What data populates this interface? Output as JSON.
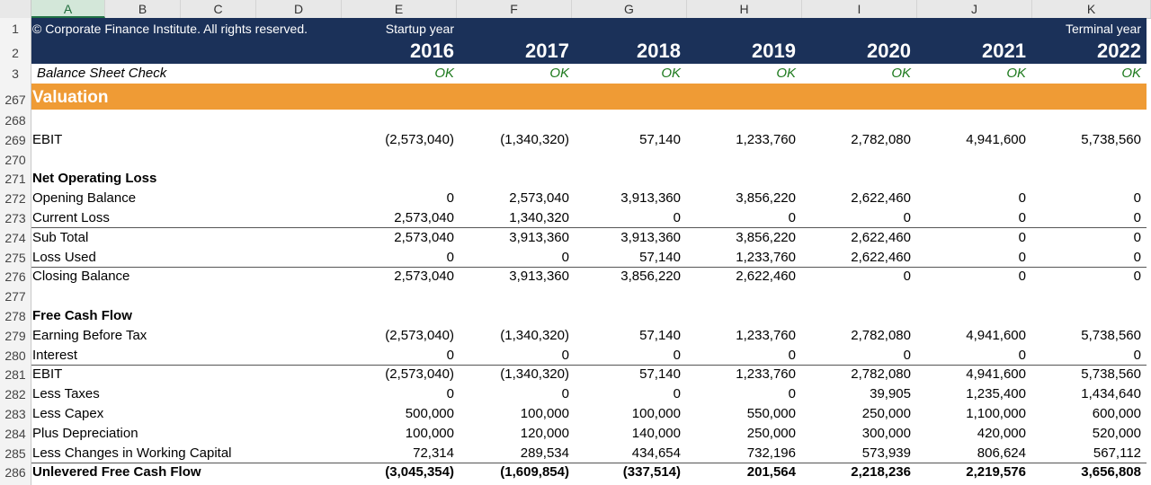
{
  "columns": [
    "A",
    "B",
    "C",
    "D",
    "E",
    "F",
    "G",
    "H",
    "I",
    "J",
    "K"
  ],
  "selected_column": "A",
  "header": {
    "copyright": "© Corporate Finance Institute. All rights reserved.",
    "startup_label": "Startup year",
    "terminal_label": "Terminal year",
    "years": [
      "2016",
      "2017",
      "2018",
      "2019",
      "2020",
      "2021",
      "2022"
    ]
  },
  "check": {
    "label": "Balance Sheet Check",
    "values": [
      "OK",
      "OK",
      "OK",
      "OK",
      "OK",
      "OK",
      "OK"
    ]
  },
  "row_numbers": {
    "r1": "1",
    "r2": "2",
    "r3": "3",
    "r267": "267"
  },
  "section_title": "Valuation",
  "rows": [
    {
      "n": "268",
      "label": "",
      "values": [
        "",
        "",
        "",
        "",
        "",
        "",
        ""
      ]
    },
    {
      "n": "269",
      "label": "EBIT",
      "values": [
        "(2,573,040)",
        "(1,340,320)",
        "57,140",
        "1,233,760",
        "2,782,080",
        "4,941,600",
        "5,738,560"
      ]
    },
    {
      "n": "270",
      "label": "",
      "values": [
        "",
        "",
        "",
        "",
        "",
        "",
        ""
      ]
    },
    {
      "n": "271",
      "label": "Net Operating Loss",
      "values": [
        "",
        "",
        "",
        "",
        "",
        "",
        ""
      ]
    },
    {
      "n": "272",
      "label": "Opening Balance",
      "values": [
        "0",
        "2,573,040",
        "3,913,360",
        "3,856,220",
        "2,622,460",
        "0",
        "0"
      ]
    },
    {
      "n": "273",
      "label": "Current Loss",
      "values": [
        "2,573,040",
        "1,340,320",
        "0",
        "0",
        "0",
        "0",
        "0"
      ]
    },
    {
      "n": "274",
      "label": "Sub Total",
      "values": [
        "2,573,040",
        "3,913,360",
        "3,913,360",
        "3,856,220",
        "2,622,460",
        "0",
        "0"
      ]
    },
    {
      "n": "275",
      "label": "Loss Used",
      "values": [
        "0",
        "0",
        "57,140",
        "1,233,760",
        "2,622,460",
        "0",
        "0"
      ]
    },
    {
      "n": "276",
      "label": "Closing Balance",
      "values": [
        "2,573,040",
        "3,913,360",
        "3,856,220",
        "2,622,460",
        "0",
        "0",
        "0"
      ]
    },
    {
      "n": "277",
      "label": "",
      "values": [
        "",
        "",
        "",
        "",
        "",
        "",
        ""
      ]
    },
    {
      "n": "278",
      "label": "Free Cash Flow",
      "values": [
        "",
        "",
        "",
        "",
        "",
        "",
        ""
      ]
    },
    {
      "n": "279",
      "label": "Earning Before Tax",
      "values": [
        "(2,573,040)",
        "(1,340,320)",
        "57,140",
        "1,233,760",
        "2,782,080",
        "4,941,600",
        "5,738,560"
      ]
    },
    {
      "n": "280",
      "label": "Interest",
      "values": [
        "0",
        "0",
        "0",
        "0",
        "0",
        "0",
        "0"
      ]
    },
    {
      "n": "281",
      "label": "EBIT",
      "values": [
        "(2,573,040)",
        "(1,340,320)",
        "57,140",
        "1,233,760",
        "2,782,080",
        "4,941,600",
        "5,738,560"
      ]
    },
    {
      "n": "282",
      "label": "Less Taxes",
      "values": [
        "0",
        "0",
        "0",
        "0",
        "39,905",
        "1,235,400",
        "1,434,640"
      ]
    },
    {
      "n": "283",
      "label": "Less Capex",
      "values": [
        "500,000",
        "100,000",
        "100,000",
        "550,000",
        "250,000",
        "1,100,000",
        "600,000"
      ]
    },
    {
      "n": "284",
      "label": "Plus Depreciation",
      "values": [
        "100,000",
        "120,000",
        "140,000",
        "250,000",
        "300,000",
        "420,000",
        "520,000"
      ]
    },
    {
      "n": "285",
      "label": "Less Changes in Working Capital",
      "values": [
        "72,314",
        "289,534",
        "434,654",
        "732,196",
        "573,939",
        "806,624",
        "567,112"
      ]
    },
    {
      "n": "286",
      "label": "Unlevered Free Cash Flow",
      "values": [
        "(3,045,354)",
        "(1,609,854)",
        "(337,514)",
        "201,564",
        "2,218,236",
        "2,219,576",
        "3,656,808"
      ]
    }
  ]
}
